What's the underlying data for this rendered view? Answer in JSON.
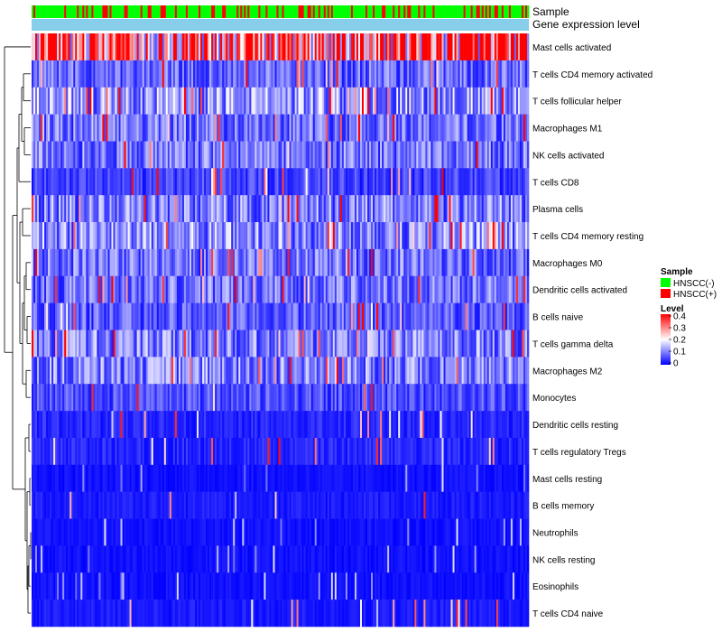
{
  "chart_data": {
    "type": "heatmap",
    "annotation_tracks": [
      "Sample",
      "Gene expression level"
    ],
    "rows": [
      "Mast cells activated",
      "T cells CD4 memory activated",
      "T cells follicular helper",
      "Macrophages M1",
      "NK cells activated",
      "T cells CD8",
      "Plasma cells",
      "T cells CD4 memory resting",
      "Macrophages M0",
      "Dendritic cells activated",
      "B cells naive",
      "T cells gamma delta",
      "Macrophages M2",
      "Monocytes",
      "Dendritic cells resting",
      "T cells regulatory  Tregs",
      "Mast cells resting",
      "B cells memory",
      "Neutrophils",
      "NK cells resting",
      "Eosinophils",
      "T cells CD4 naive"
    ],
    "row_mean_level": [
      0.33,
      0.08,
      0.12,
      0.09,
      0.09,
      0.05,
      0.1,
      0.11,
      0.09,
      0.09,
      0.07,
      0.1,
      0.1,
      0.06,
      0.03,
      0.03,
      0.01,
      0.02,
      0.01,
      0.01,
      0.005,
      0.02
    ],
    "n_samples": 274,
    "sample_fraction_positive": 0.22,
    "legend": {
      "sample_title": "Sample",
      "sample_groups": [
        {
          "label": "HNSCC(-)",
          "color": "#00ff00"
        },
        {
          "label": "HNSCC(+)",
          "color": "#ff0000"
        }
      ],
      "level_title": "Level",
      "level_ticks": [
        "0.4",
        "0.3",
        "0.2",
        "0.1",
        "0"
      ],
      "level_range": [
        0,
        0.4
      ]
    },
    "colors": {
      "low": "#0000ff",
      "mid": "#ffffff",
      "high": "#ff0000",
      "expression_track": "#87ceeb"
    }
  }
}
